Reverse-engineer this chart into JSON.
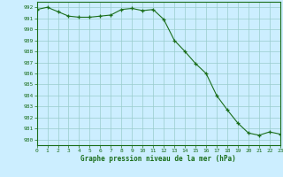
{
  "x": [
    0,
    1,
    2,
    3,
    4,
    5,
    6,
    7,
    8,
    9,
    10,
    11,
    12,
    13,
    14,
    15,
    16,
    17,
    18,
    19,
    20,
    21,
    22,
    23
  ],
  "y": [
    991.8,
    992.0,
    991.6,
    991.2,
    991.1,
    991.1,
    991.2,
    991.3,
    991.8,
    991.9,
    991.7,
    991.8,
    990.9,
    989.0,
    988.0,
    986.9,
    986.0,
    984.0,
    982.7,
    981.5,
    980.6,
    980.4,
    980.7,
    980.5
  ],
  "line_color": "#1a6e1a",
  "marker_color": "#1a6e1a",
  "bg_color": "#cceeff",
  "grid_color": "#99cccc",
  "title": "Graphe pression niveau de la mer (hPa)",
  "ylabel_start": 980,
  "ylabel_end": 992,
  "xlim": [
    0,
    23
  ],
  "ylim": [
    979.5,
    992.5
  ]
}
